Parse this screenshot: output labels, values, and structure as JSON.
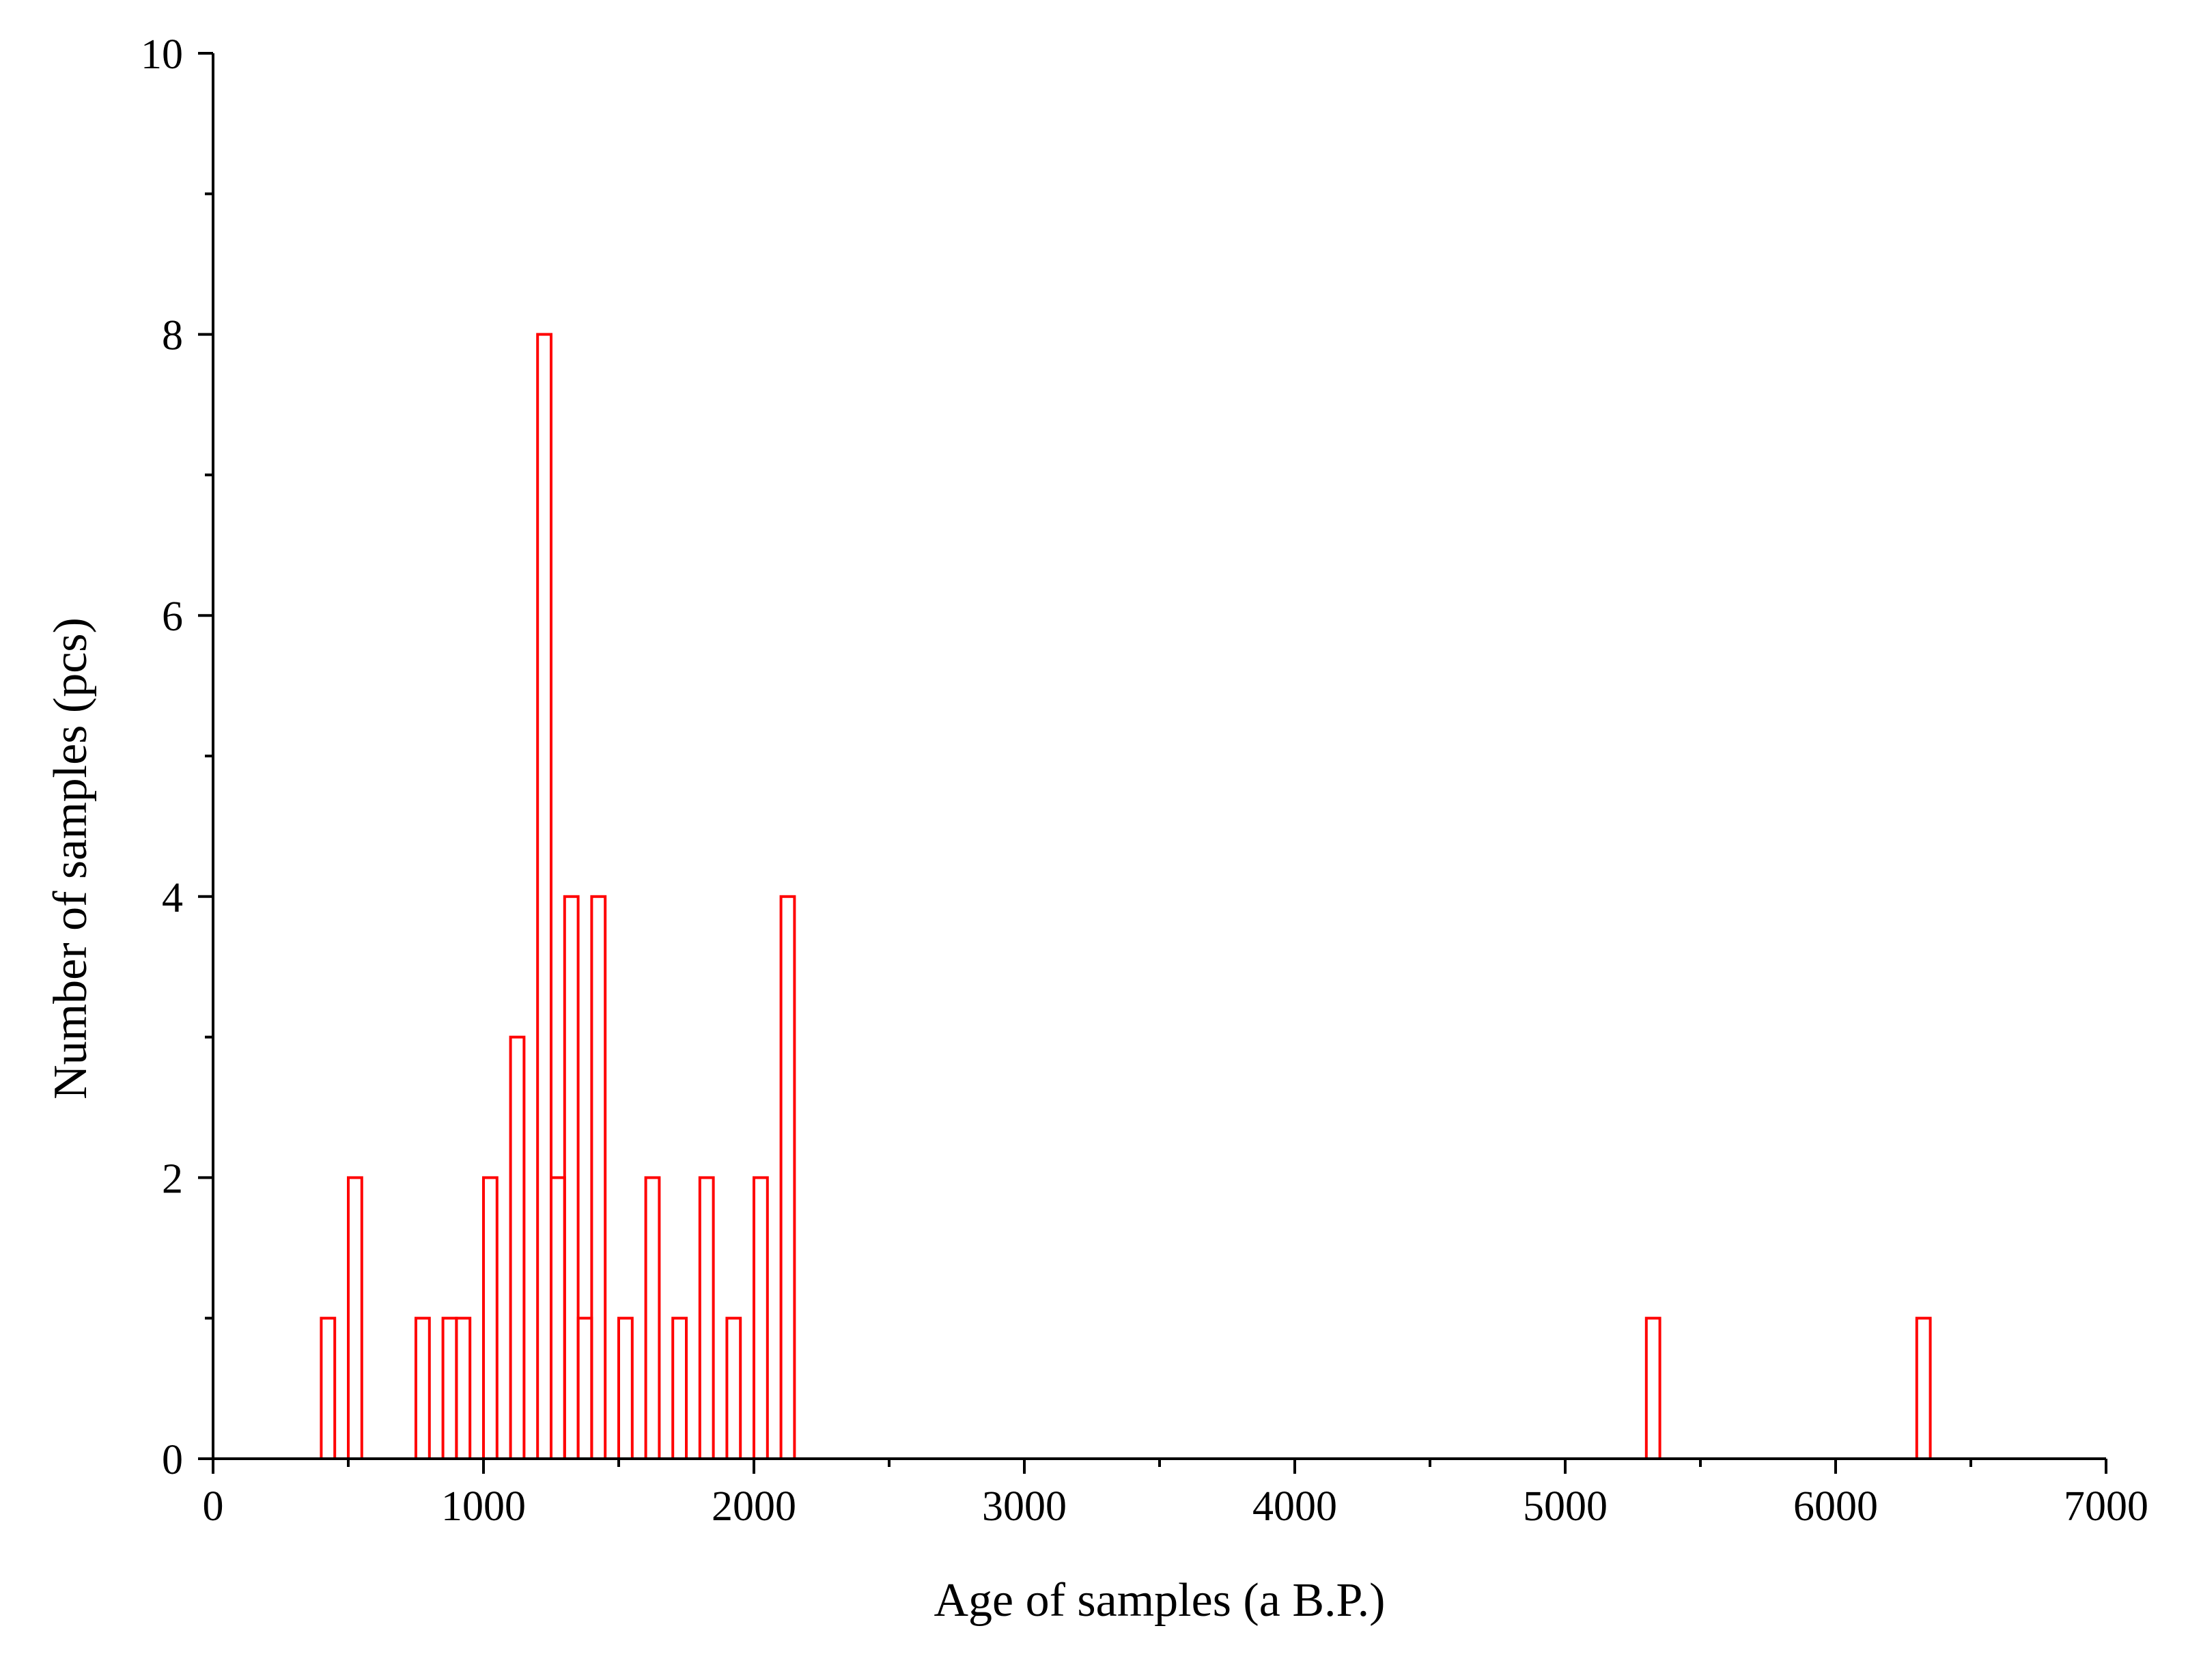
{
  "chart_data": {
    "type": "bar",
    "title": "",
    "xlabel": "Age of samples (a B.P.)",
    "ylabel": "Number of samples (pcs)",
    "xlim": [
      0,
      7000
    ],
    "ylim": [
      0,
      10
    ],
    "x_ticks": [
      0,
      1000,
      2000,
      3000,
      4000,
      5000,
      6000,
      7000
    ],
    "y_ticks": [
      0,
      2,
      4,
      6,
      8,
      10
    ],
    "bin_width": 50,
    "bar_color": "#ff0000",
    "grid": false,
    "bars": [
      {
        "x": 400,
        "value": 1
      },
      {
        "x": 500,
        "value": 2
      },
      {
        "x": 750,
        "value": 1
      },
      {
        "x": 850,
        "value": 1
      },
      {
        "x": 900,
        "value": 1
      },
      {
        "x": 1000,
        "value": 2
      },
      {
        "x": 1100,
        "value": 3
      },
      {
        "x": 1200,
        "value": 8
      },
      {
        "x": 1250,
        "value": 2
      },
      {
        "x": 1300,
        "value": 4
      },
      {
        "x": 1350,
        "value": 1
      },
      {
        "x": 1400,
        "value": 4
      },
      {
        "x": 1500,
        "value": 1
      },
      {
        "x": 1600,
        "value": 2
      },
      {
        "x": 1700,
        "value": 1
      },
      {
        "x": 1800,
        "value": 2
      },
      {
        "x": 1900,
        "value": 1
      },
      {
        "x": 2000,
        "value": 2
      },
      {
        "x": 2100,
        "value": 4
      },
      {
        "x": 5300,
        "value": 1
      },
      {
        "x": 6300,
        "value": 1
      }
    ]
  }
}
